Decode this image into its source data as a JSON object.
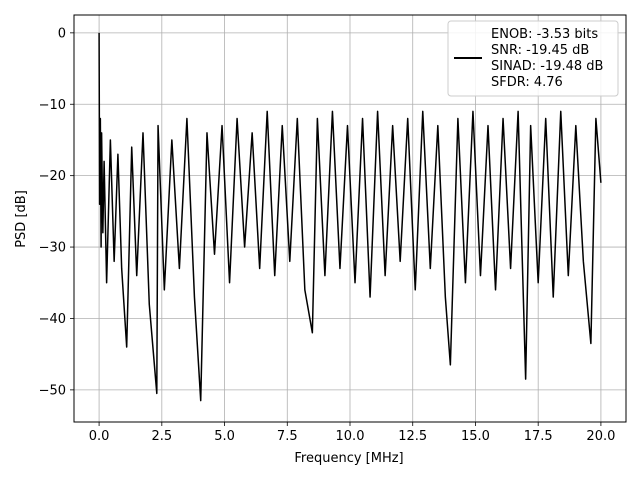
{
  "chart_data": {
    "type": "line",
    "title": "",
    "xlabel": "Frequency [MHz]",
    "ylabel": "PSD [dB]",
    "xlim": [
      -1.0,
      21.0
    ],
    "ylim": [
      -54.5,
      2.5
    ],
    "xticks": [
      0.0,
      2.5,
      5.0,
      7.5,
      10.0,
      12.5,
      15.0,
      17.5,
      20.0
    ],
    "xtick_labels": [
      "0.0",
      "2.5",
      "5.0",
      "7.5",
      "10.0",
      "12.5",
      "15.0",
      "17.5",
      "20.0"
    ],
    "yticks": [
      0,
      -10,
      -20,
      -30,
      -40,
      -50
    ],
    "ytick_labels": [
      "0",
      "−10",
      "−20",
      "−30",
      "−40",
      "−50"
    ],
    "grid": true,
    "legend_placement": "upper-right",
    "series": [
      {
        "name": "ENOB: -3.53 bits\nSNR: -19.45 dB\nSINAD: -19.48 dB\nSFDR: 4.76",
        "legend_lines": [
          "ENOB: -3.53 bits",
          "SNR: -19.45 dB",
          "SINAD: -19.48 dB",
          "SFDR: 4.76"
        ],
        "color": "#000000",
        "x": [
          0.0,
          0.02,
          0.05,
          0.08,
          0.1,
          0.15,
          0.2,
          0.3,
          0.45,
          0.6,
          0.75,
          0.9,
          1.1,
          1.3,
          1.5,
          1.75,
          2.0,
          2.3,
          2.35,
          2.6,
          2.9,
          3.2,
          3.5,
          3.8,
          4.05,
          4.3,
          4.6,
          4.9,
          5.2,
          5.5,
          5.8,
          6.1,
          6.4,
          6.7,
          7.0,
          7.3,
          7.6,
          7.9,
          8.2,
          8.5,
          8.7,
          9.0,
          9.3,
          9.6,
          9.9,
          10.2,
          10.5,
          10.8,
          11.1,
          11.4,
          11.7,
          12.0,
          12.3,
          12.6,
          12.9,
          13.2,
          13.5,
          13.8,
          14.0,
          14.3,
          14.6,
          14.9,
          15.2,
          15.5,
          15.8,
          16.1,
          16.4,
          16.7,
          17.0,
          17.2,
          17.5,
          17.8,
          18.1,
          18.4,
          18.7,
          19.0,
          19.3,
          19.6,
          19.8,
          20.0
        ],
        "y": [
          0.0,
          -24.0,
          -12.0,
          -30.0,
          -14.0,
          -28.0,
          -18.0,
          -35.0,
          -15.0,
          -32.0,
          -17.0,
          -33.0,
          -44.0,
          -16.0,
          -34.0,
          -14.0,
          -38.0,
          -50.5,
          -13.0,
          -36.0,
          -15.0,
          -33.0,
          -12.0,
          -37.0,
          -51.5,
          -14.0,
          -31.0,
          -13.0,
          -35.0,
          -12.0,
          -30.0,
          -14.0,
          -33.0,
          -11.0,
          -34.0,
          -13.0,
          -32.0,
          -12.0,
          -36.0,
          -42.0,
          -12.0,
          -34.0,
          -11.0,
          -33.0,
          -13.0,
          -35.0,
          -12.0,
          -37.0,
          -11.0,
          -34.0,
          -13.0,
          -32.0,
          -12.0,
          -36.0,
          -11.0,
          -33.0,
          -13.0,
          -37.0,
          -46.5,
          -12.0,
          -35.0,
          -11.0,
          -34.0,
          -13.0,
          -36.0,
          -12.0,
          -33.0,
          -11.0,
          -48.5,
          -13.0,
          -35.0,
          -12.0,
          -37.0,
          -11.0,
          -34.0,
          -13.0,
          -32.0,
          -43.5,
          -12.0,
          -21.0
        ]
      }
    ]
  }
}
